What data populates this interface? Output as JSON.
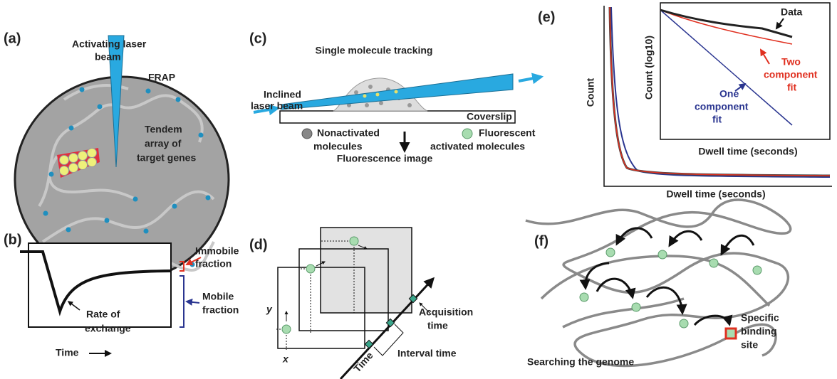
{
  "panels": {
    "a": {
      "label": "(a)",
      "laser": [
        "Activating laser",
        "beam"
      ],
      "frap": "FRAP",
      "array": [
        "Tendem",
        "array of",
        "target genes"
      ]
    },
    "b": {
      "label": "(b)",
      "immobile": [
        "Immobile",
        "fraction"
      ],
      "mobile": [
        "Mobile",
        "fraction"
      ],
      "rate": [
        "Rate of",
        "exchange"
      ],
      "time": "Time"
    },
    "c": {
      "label": "(c)",
      "title": "Single molecule tracking",
      "laser": [
        "Inclined",
        "laser beam"
      ],
      "coverslip": "Coverslip",
      "nonactivated": [
        "Nonactivated",
        "molecules"
      ],
      "fluorescent": [
        "Fluorescent",
        "activated molecules"
      ],
      "image": "Fluorescence image"
    },
    "d": {
      "label": "(d)",
      "y": "y",
      "x": "x",
      "acquisition": [
        "Acquisition",
        "time"
      ],
      "interval": "Interval time",
      "time": "Time"
    },
    "e": {
      "label": "(e)",
      "ylabel": "Count",
      "xlabel": "Dwell time (seconds)",
      "inset_ylabel": "Count (log10)",
      "inset_xlabel": "Dwell time (seconds)",
      "data": "Data",
      "two": [
        "Two",
        "component",
        "fit"
      ],
      "one": [
        "One",
        "component",
        "fit"
      ]
    },
    "f": {
      "label": "(f)",
      "caption": "Searching the genome",
      "site": [
        "Specific",
        "binding",
        "site"
      ]
    }
  }
}
